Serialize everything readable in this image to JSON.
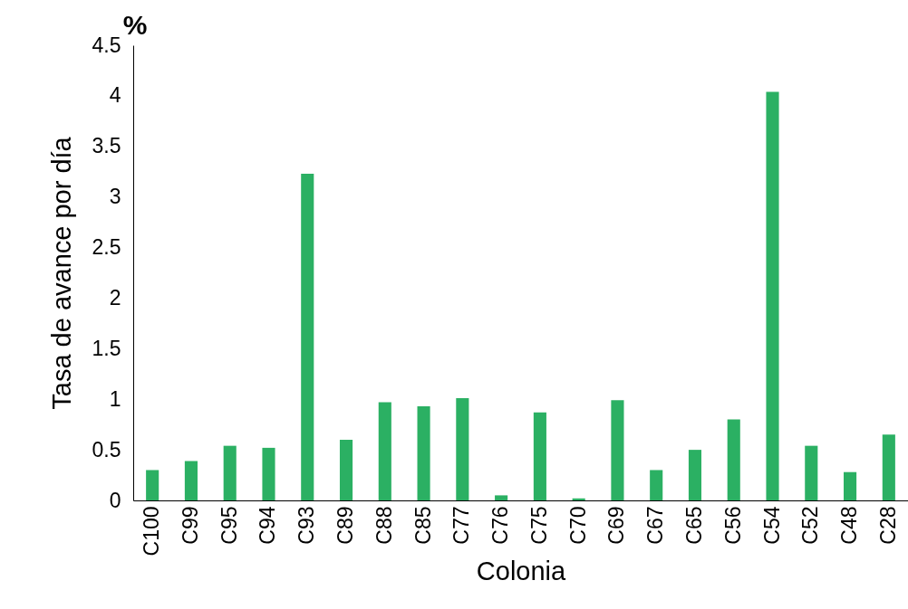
{
  "chart_data": {
    "type": "bar",
    "xlabel": "Colonia",
    "ylabel": "Tasa de avance por día",
    "annotations": [
      "%"
    ],
    "categories": [
      "C100",
      "C99",
      "C95",
      "C94",
      "C93",
      "C89",
      "C88",
      "C85",
      "C77",
      "C76",
      "C75",
      "C70",
      "C69",
      "C67",
      "C65",
      "C56",
      "C54",
      "C52",
      "C48",
      "C28"
    ],
    "values": [
      0.3,
      0.39,
      0.54,
      0.52,
      3.23,
      0.6,
      0.97,
      0.93,
      1.01,
      0.05,
      0.87,
      0.02,
      0.99,
      0.3,
      0.5,
      0.8,
      4.04,
      0.54,
      0.28,
      0.65
    ],
    "color": "#2bb063",
    "ylim": [
      0,
      4.5
    ],
    "yticks": [
      0,
      0.5,
      1,
      1.5,
      2,
      2.5,
      3,
      3.5,
      4,
      4.5
    ],
    "grid": false
  }
}
